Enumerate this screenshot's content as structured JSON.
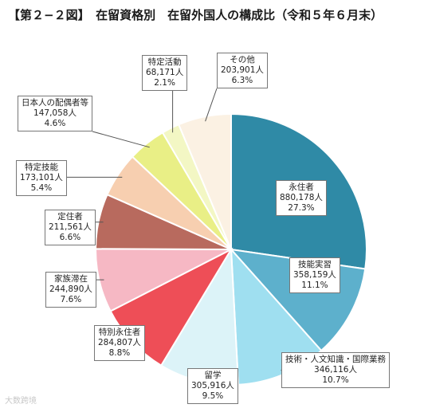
{
  "title": "【第２−２図】　在留資格別　在留外国人の構成比（令和５年６月末）",
  "watermark": "大数跨境",
  "watermark_right": "",
  "chart_data": {
    "type": "pie",
    "title": "【第２−２図】　在留資格別　在留外国人の構成比（令和５年６月末）",
    "slices": [
      {
        "name": "永住者",
        "value": 880178,
        "value_label": "880,178人",
        "percent": "27.3%",
        "color": "#2f8aa6"
      },
      {
        "name": "技能実習",
        "value": 358159,
        "value_label": "358,159人",
        "percent": "11.1%",
        "color": "#5db0cc"
      },
      {
        "name": "技術・人文知識・国際業務",
        "value": 346116,
        "value_label": "346,116人",
        "percent": "10.7%",
        "color": "#9fdff0"
      },
      {
        "name": "留学",
        "value": 305916,
        "value_label": "305,916人",
        "percent": "9.5%",
        "color": "#dcf3f8"
      },
      {
        "name": "特別永住者",
        "value": 284807,
        "value_label": "284,807人",
        "percent": "8.8%",
        "color": "#ee4e57"
      },
      {
        "name": "家族滞在",
        "value": 244890,
        "value_label": "244,890人",
        "percent": "7.6%",
        "color": "#f6b8c4"
      },
      {
        "name": "定住者",
        "value": 211561,
        "value_label": "211,561人",
        "percent": "6.6%",
        "color": "#b86a5e"
      },
      {
        "name": "特定技能",
        "value": 173101,
        "value_label": "173,101人",
        "percent": "5.4%",
        "color": "#f7cfb0"
      },
      {
        "name": "日本人の配偶者等",
        "value": 147058,
        "value_label": "147,058人",
        "percent": "4.6%",
        "color": "#e9ef86"
      },
      {
        "name": "特定活動",
        "value": 68171,
        "value_label": "68,171人",
        "percent": "2.1%",
        "color": "#f3f7c4"
      },
      {
        "name": "その他",
        "value": 203901,
        "value_label": "203,901人",
        "percent": "6.3%",
        "color": "#fbf1e3"
      }
    ]
  }
}
